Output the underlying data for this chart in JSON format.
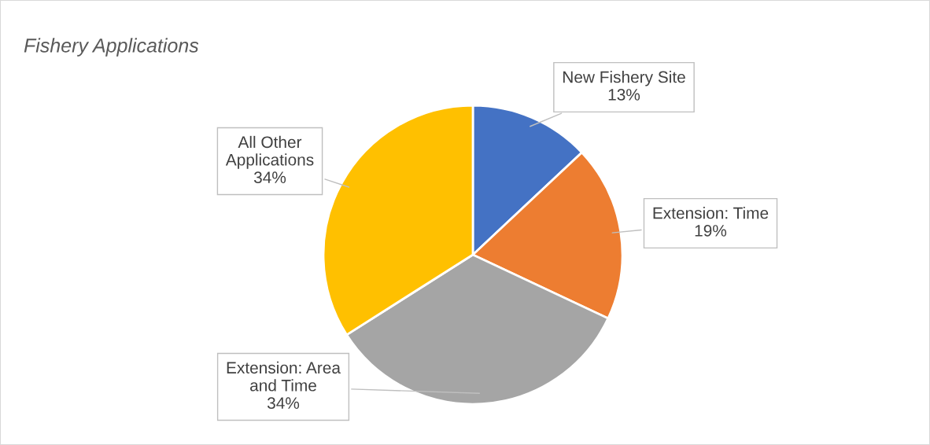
{
  "chart_data": {
    "type": "pie",
    "title": "Fishery Applications",
    "categories": [
      "New Fishery Site",
      "Extension: Time",
      "Extension: Area and Time",
      "All Other Applications"
    ],
    "values": [
      13,
      19,
      34,
      34
    ],
    "colors": [
      "#4472c4",
      "#ed7d31",
      "#a5a5a5",
      "#ffc000"
    ],
    "value_labels": [
      "13%",
      "19%",
      "34%",
      "34%"
    ]
  }
}
